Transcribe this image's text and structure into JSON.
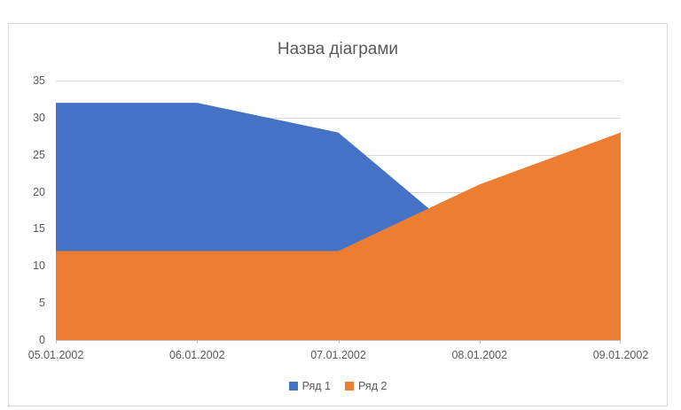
{
  "colors": {
    "background": "#FFFFFF",
    "chart_border": "#D9D9D9",
    "gridline": "#D9D9D9",
    "axis_line": "#BFBFBF",
    "text": "#595959",
    "series1": "#4472C4",
    "series2": "#ED7D31"
  },
  "chart_data": {
    "type": "area",
    "title": "Назва діаграми",
    "categories": [
      "05.01.2002",
      "06.01.2002",
      "07.01.2002",
      "08.01.2002",
      "09.01.2002"
    ],
    "series": [
      {
        "name": "Ряд 1",
        "color": "#4472C4",
        "values": [
          32,
          32,
          28,
          12,
          12
        ]
      },
      {
        "name": "Ряд 2",
        "color": "#ED7D31",
        "values": [
          12,
          12,
          12,
          21,
          28
        ]
      }
    ],
    "ylim": [
      0,
      35
    ],
    "yticks": [
      0,
      5,
      10,
      15,
      20,
      25,
      30,
      35
    ],
    "xlabel": "",
    "ylabel": "",
    "grid": true,
    "legend_position": "bottom"
  }
}
